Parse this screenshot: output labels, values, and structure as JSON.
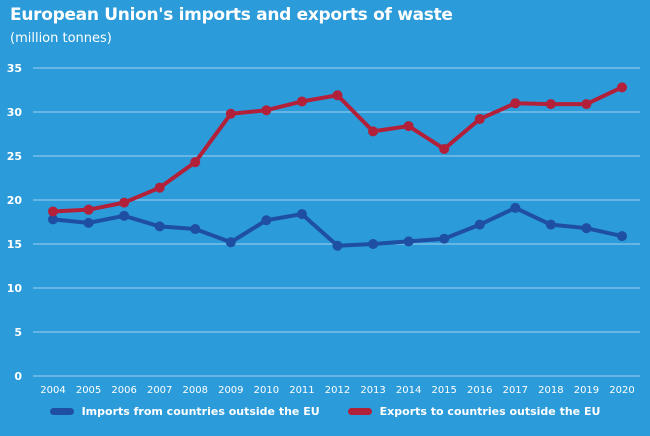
{
  "chart_data": {
    "type": "line",
    "title": "European Union's imports and exports of waste",
    "subtitle": "(million tonnes)",
    "xlabel": "",
    "ylabel": "",
    "ylim": [
      0,
      35
    ],
    "yticks": [
      "0",
      "5",
      "10",
      "15",
      "20",
      "25",
      "30",
      "35"
    ],
    "categories": [
      "2004",
      "2005",
      "2006",
      "2007",
      "2008",
      "2009",
      "2010",
      "2011",
      "2012",
      "2013",
      "2014",
      "2015",
      "2016",
      "2017",
      "2018",
      "2019",
      "2020"
    ],
    "grid": true,
    "legend_position": "bottom",
    "series": [
      {
        "name": "Imports from countries outside the EU",
        "color": "#1f4fa3",
        "values": [
          17.8,
          17.4,
          18.2,
          17.0,
          16.7,
          15.2,
          17.7,
          18.4,
          14.8,
          15.0,
          15.3,
          15.6,
          17.2,
          19.1,
          17.2,
          16.8,
          15.9
        ]
      },
      {
        "name": "Exports to countries outside the EU",
        "color": "#b3203a",
        "values": [
          18.7,
          18.9,
          19.7,
          21.4,
          24.3,
          29.8,
          30.2,
          31.2,
          31.9,
          27.8,
          28.4,
          25.8,
          29.2,
          31.0,
          30.9,
          30.9,
          32.8
        ]
      }
    ]
  }
}
